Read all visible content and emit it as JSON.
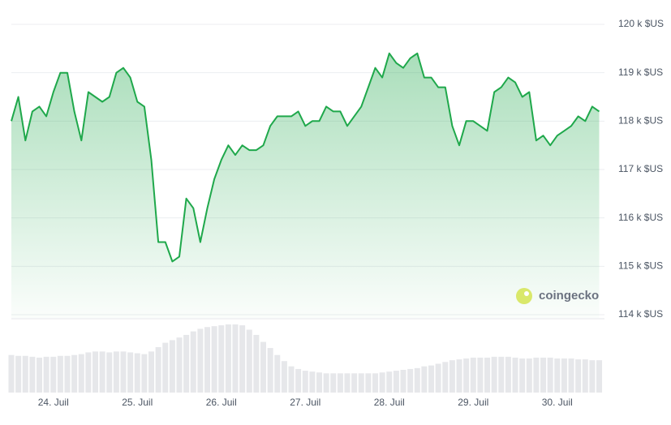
{
  "chart_data": {
    "type": "area",
    "x": [
      0,
      2,
      4,
      6,
      8,
      10,
      12,
      14,
      16,
      18,
      20,
      22,
      24,
      26,
      28,
      30,
      32,
      34,
      36,
      38,
      40,
      42,
      44,
      46,
      48,
      50,
      52,
      54,
      56,
      58,
      60,
      62,
      64,
      66,
      68,
      70,
      72,
      74,
      76,
      78,
      80,
      82,
      84,
      86,
      88,
      90,
      92,
      94,
      96,
      98,
      100,
      102,
      104,
      106,
      108,
      110,
      112,
      114,
      116,
      118,
      120,
      122,
      124,
      126,
      128,
      130,
      132,
      134,
      136,
      138,
      140,
      142,
      144,
      146,
      148,
      150,
      152,
      154,
      156,
      158,
      160,
      162,
      164,
      166,
      168
    ],
    "series": [
      {
        "color": "#1fa84b",
        "values": [
          118.0,
          118.5,
          117.6,
          118.2,
          118.3,
          118.1,
          118.6,
          119.0,
          119.0,
          118.2,
          117.6,
          118.6,
          118.5,
          118.4,
          118.5,
          119.0,
          119.1,
          118.9,
          118.4,
          118.3,
          117.2,
          115.5,
          115.5,
          115.1,
          115.2,
          116.4,
          116.2,
          115.5,
          116.2,
          116.8,
          117.2,
          117.5,
          117.3,
          117.5,
          117.4,
          117.4,
          117.5,
          117.9,
          118.1,
          118.1,
          118.1,
          118.2,
          117.9,
          118.0,
          118.0,
          118.3,
          118.2,
          118.2,
          117.9,
          118.1,
          118.3,
          118.7,
          119.1,
          118.9,
          119.4,
          119.2,
          119.1,
          119.3,
          119.4,
          118.9,
          118.9,
          118.7,
          118.7,
          117.9,
          117.5,
          118.0,
          118.0,
          117.9,
          117.8,
          118.6,
          118.7,
          118.9,
          118.8,
          118.5,
          118.6,
          117.6,
          117.7,
          117.5,
          117.7,
          117.8,
          117.9,
          118.1,
          118.0,
          118.3,
          118.2
        ]
      },
      {
        "type": "bar",
        "color": "#e6e7ea",
        "values": [
          43,
          42,
          42,
          41,
          40,
          41,
          41,
          42,
          42,
          43,
          44,
          46,
          47,
          47,
          46,
          47,
          47,
          46,
          45,
          44,
          47,
          52,
          57,
          60,
          63,
          66,
          70,
          73,
          75,
          76,
          77,
          78,
          78,
          77,
          72,
          66,
          58,
          51,
          43,
          36,
          30,
          27,
          25,
          24,
          23,
          22,
          22,
          22,
          22,
          22,
          22,
          22,
          22,
          23,
          24,
          25,
          26,
          27,
          28,
          30,
          31,
          33,
          35,
          37,
          38,
          39,
          40,
          40,
          40,
          41,
          41,
          41,
          40,
          39,
          39,
          40,
          40,
          40,
          39,
          39,
          39,
          38,
          38,
          37,
          37
        ]
      }
    ],
    "xlim": [
      0,
      169.5
    ],
    "xticks": [
      {
        "value": 12,
        "label": "24. Juil"
      },
      {
        "value": 36,
        "label": "25. Juil"
      },
      {
        "value": 60,
        "label": "26. Juil"
      },
      {
        "value": 84,
        "label": "27. Juil"
      },
      {
        "value": 108,
        "label": "28. Juil"
      },
      {
        "value": 132,
        "label": "29. Juil"
      },
      {
        "value": 156,
        "label": "30. Juil"
      }
    ],
    "ylim": [
      114,
      120
    ],
    "yticks": [
      {
        "value": 120,
        "label": "120 k $US"
      },
      {
        "value": 119,
        "label": "119 k $US"
      },
      {
        "value": 118,
        "label": "118 k $US"
      },
      {
        "value": 117,
        "label": "117 k $US"
      },
      {
        "value": 116,
        "label": "116 k $US"
      },
      {
        "value": 115,
        "label": "115 k $US"
      },
      {
        "value": 114,
        "label": "114 k $US"
      }
    ],
    "grid": true,
    "watermark": "coingecko"
  }
}
